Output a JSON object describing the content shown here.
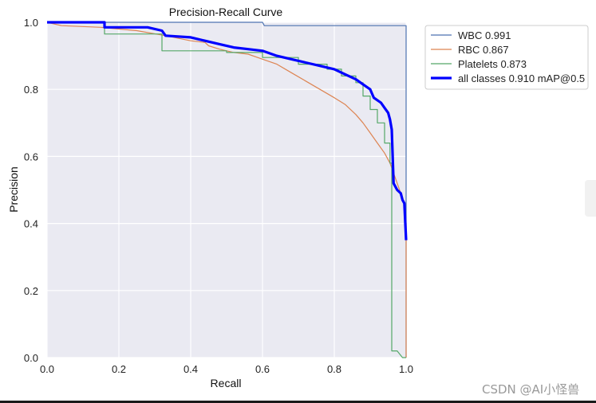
{
  "watermark": "CSDN @AI小怪兽",
  "colors": {
    "plot_background": "#eaeaf2",
    "grid": "#ffffff",
    "bottom_bar": "#1a1a1a"
  },
  "chart_data": {
    "type": "line",
    "title": "Precision-Recall Curve",
    "xlabel": "Recall",
    "ylabel": "Precision",
    "xlim": [
      0,
      1
    ],
    "ylim": [
      0,
      1
    ],
    "xticks": [
      "0.0",
      "0.2",
      "0.4",
      "0.6",
      "0.8",
      "1.0"
    ],
    "yticks": [
      "0.0",
      "0.2",
      "0.4",
      "0.6",
      "0.8",
      "1.0"
    ],
    "grid": true,
    "legend_position": "outside-top-right",
    "series": [
      {
        "name": "WBC 0.991",
        "color": "#4c72b0",
        "width": 1.2,
        "points": [
          [
            0,
            1.0
          ],
          [
            0.6,
            1.0
          ],
          [
            0.605,
            0.99
          ],
          [
            1.0,
            0.99
          ],
          [
            1.0,
            0.0
          ]
        ]
      },
      {
        "name": "RBC 0.867",
        "color": "#dd8452",
        "width": 1.2,
        "points": [
          [
            0,
            1.0
          ],
          [
            0.04,
            0.99
          ],
          [
            0.15,
            0.985
          ],
          [
            0.25,
            0.975
          ],
          [
            0.33,
            0.96
          ],
          [
            0.4,
            0.945
          ],
          [
            0.44,
            0.94
          ],
          [
            0.45,
            0.93
          ],
          [
            0.48,
            0.92
          ],
          [
            0.52,
            0.91
          ],
          [
            0.56,
            0.905
          ],
          [
            0.6,
            0.89
          ],
          [
            0.64,
            0.875
          ],
          [
            0.68,
            0.85
          ],
          [
            0.72,
            0.825
          ],
          [
            0.76,
            0.8
          ],
          [
            0.8,
            0.775
          ],
          [
            0.83,
            0.755
          ],
          [
            0.86,
            0.725
          ],
          [
            0.88,
            0.7
          ],
          [
            0.9,
            0.67
          ],
          [
            0.92,
            0.64
          ],
          [
            0.94,
            0.61
          ],
          [
            0.955,
            0.58
          ],
          [
            0.965,
            0.55
          ],
          [
            0.975,
            0.52
          ],
          [
            0.985,
            0.49
          ],
          [
            0.995,
            0.46
          ],
          [
            1.0,
            0.4
          ],
          [
            1.0,
            0.0
          ]
        ]
      },
      {
        "name": "Platelets 0.873",
        "color": "#55a868",
        "width": 1.2,
        "points": [
          [
            0,
            1.0
          ],
          [
            0.16,
            1.0
          ],
          [
            0.16,
            0.965
          ],
          [
            0.32,
            0.965
          ],
          [
            0.32,
            0.915
          ],
          [
            0.5,
            0.915
          ],
          [
            0.5,
            0.91
          ],
          [
            0.6,
            0.91
          ],
          [
            0.6,
            0.895
          ],
          [
            0.7,
            0.895
          ],
          [
            0.7,
            0.875
          ],
          [
            0.78,
            0.875
          ],
          [
            0.78,
            0.86
          ],
          [
            0.82,
            0.86
          ],
          [
            0.82,
            0.84
          ],
          [
            0.86,
            0.84
          ],
          [
            0.86,
            0.82
          ],
          [
            0.88,
            0.82
          ],
          [
            0.88,
            0.78
          ],
          [
            0.9,
            0.78
          ],
          [
            0.9,
            0.74
          ],
          [
            0.92,
            0.74
          ],
          [
            0.92,
            0.7
          ],
          [
            0.94,
            0.7
          ],
          [
            0.94,
            0.64
          ],
          [
            0.955,
            0.64
          ],
          [
            0.955,
            0.58
          ],
          [
            0.96,
            0.58
          ],
          [
            0.96,
            0.02
          ],
          [
            0.975,
            0.02
          ],
          [
            0.99,
            0.0
          ],
          [
            1.0,
            0.0
          ]
        ]
      },
      {
        "name": "all classes 0.910 mAP@0.5",
        "color": "#0000ff",
        "width": 3.2,
        "points": [
          [
            0,
            1.0
          ],
          [
            0.16,
            1.0
          ],
          [
            0.16,
            0.985
          ],
          [
            0.28,
            0.985
          ],
          [
            0.32,
            0.975
          ],
          [
            0.33,
            0.96
          ],
          [
            0.4,
            0.955
          ],
          [
            0.44,
            0.945
          ],
          [
            0.48,
            0.935
          ],
          [
            0.52,
            0.925
          ],
          [
            0.56,
            0.92
          ],
          [
            0.6,
            0.915
          ],
          [
            0.64,
            0.9
          ],
          [
            0.68,
            0.89
          ],
          [
            0.72,
            0.88
          ],
          [
            0.76,
            0.87
          ],
          [
            0.8,
            0.86
          ],
          [
            0.83,
            0.845
          ],
          [
            0.86,
            0.83
          ],
          [
            0.88,
            0.815
          ],
          [
            0.9,
            0.8
          ],
          [
            0.91,
            0.775
          ],
          [
            0.93,
            0.76
          ],
          [
            0.94,
            0.745
          ],
          [
            0.95,
            0.73
          ],
          [
            0.955,
            0.71
          ],
          [
            0.96,
            0.68
          ],
          [
            0.965,
            0.52
          ],
          [
            0.975,
            0.5
          ],
          [
            0.985,
            0.49
          ],
          [
            0.99,
            0.47
          ],
          [
            0.995,
            0.46
          ],
          [
            1.0,
            0.35
          ]
        ]
      }
    ]
  }
}
